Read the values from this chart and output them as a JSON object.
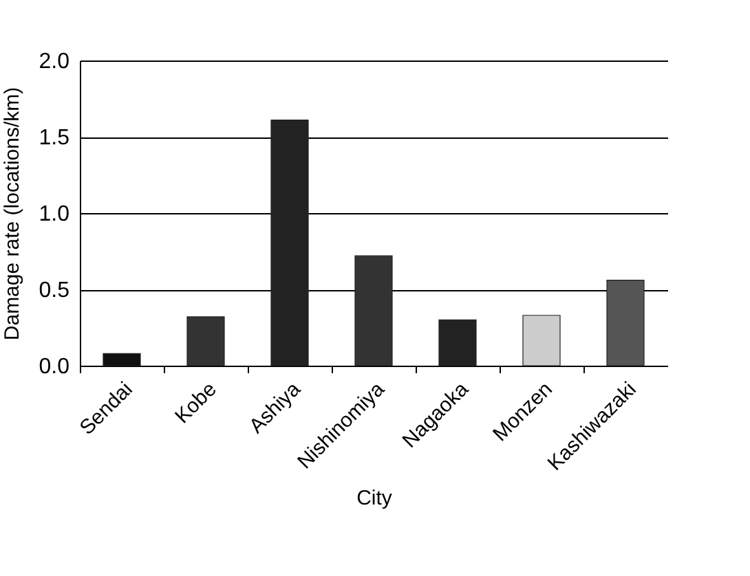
{
  "chart_data": {
    "type": "bar",
    "xlabel": "City",
    "ylabel": "Damage rate (locations/km)",
    "categories": [
      "Sendai",
      "Kobe",
      "Ashiya",
      "Nishinomiya",
      "Nagaoka",
      "Monzen",
      "Kashiwazaki"
    ],
    "values": [
      0.08,
      0.32,
      1.61,
      0.72,
      0.3,
      0.33,
      0.56
    ],
    "colors": [
      "#111111",
      "#333333",
      "#222222",
      "#333333",
      "#222222",
      "#cccccc",
      "#555555"
    ],
    "ylim": [
      0,
      2
    ],
    "yticks": [
      {
        "value": 0,
        "label": "0.0"
      },
      {
        "value": 0.5,
        "label": "0.5"
      },
      {
        "value": 1,
        "label": "1.0"
      },
      {
        "value": 1.5,
        "label": "1.5"
      },
      {
        "value": 2,
        "label": "2.0"
      }
    ],
    "grid": "y"
  }
}
